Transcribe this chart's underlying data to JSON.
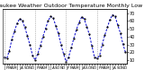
{
  "title": "Milwaukee Weather Outdoor Temperature Monthly Low",
  "values": [
    14,
    12,
    22,
    37,
    47,
    57,
    63,
    61,
    52,
    41,
    29,
    16,
    10,
    18,
    28,
    40,
    50,
    60,
    66,
    64,
    54,
    44,
    30,
    18,
    8,
    14,
    26,
    38,
    49,
    58,
    65,
    63,
    53,
    43,
    28,
    14,
    12,
    16,
    30,
    42,
    52,
    62,
    68,
    66,
    55,
    45,
    31,
    20
  ],
  "line_color": "#0000cc",
  "marker_color": "#000000",
  "bg_color": "#ffffff",
  "grid_color": "#888888",
  "ylim": [
    5,
    75
  ],
  "yticks": [
    10,
    20,
    30,
    40,
    50,
    60,
    70
  ],
  "ylabel_fontsize": 3.5,
  "xlabel_fontsize": 3.0,
  "line_width": 0.7,
  "marker_size": 1.2,
  "title_fontsize": 4.5
}
